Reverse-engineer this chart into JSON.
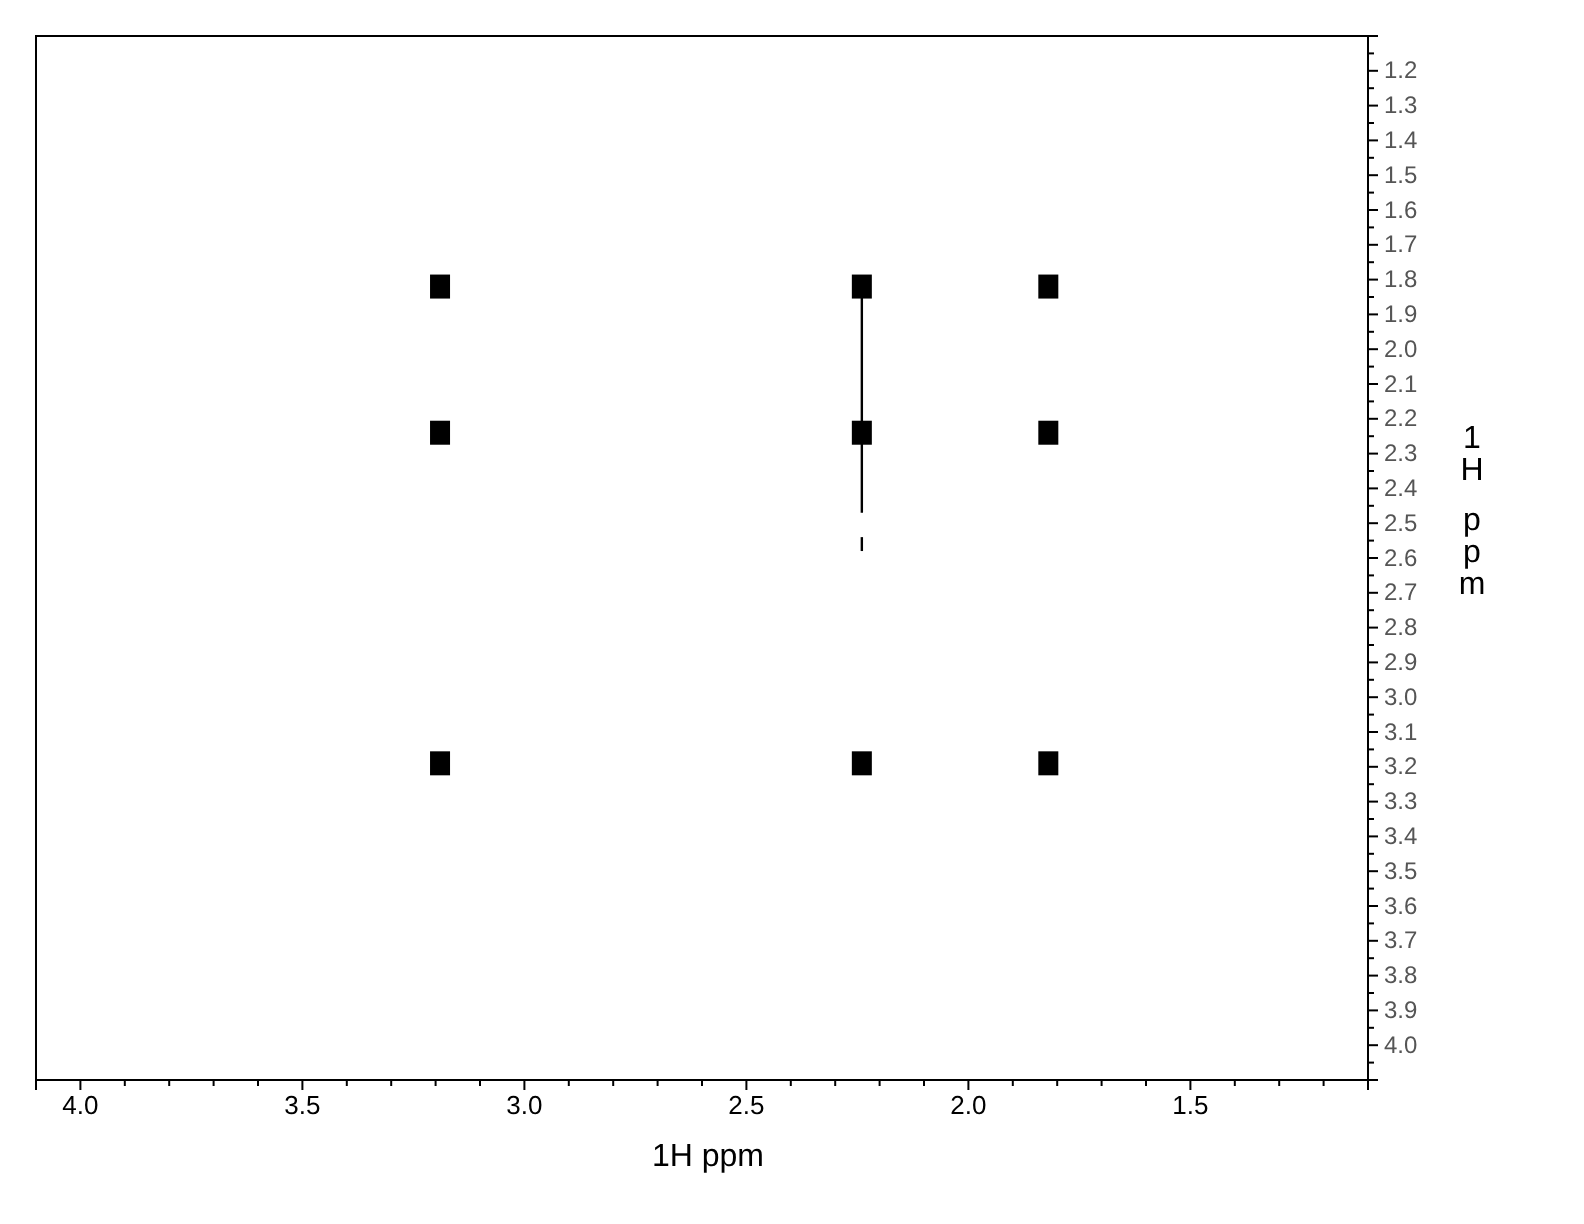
{
  "chart_data": {
    "type": "scatter",
    "xlabel": "1H ppm",
    "ylabel": "1H ppm",
    "xlim": [
      4.1,
      1.1
    ],
    "ylim": [
      4.1,
      1.1
    ],
    "xticks": [
      {
        "value": 4,
        "label": "4.0"
      },
      {
        "value": 3.9,
        "label": null
      },
      {
        "value": 3.8,
        "label": null
      },
      {
        "value": 3.7,
        "label": null
      },
      {
        "value": 3.6,
        "label": null
      },
      3.5,
      {
        "value": 3.4,
        "label": null
      },
      {
        "value": 3.3,
        "label": null
      },
      {
        "value": 3.2,
        "label": null
      },
      {
        "value": 3.1,
        "label": null
      },
      {
        "value": 3,
        "label": "3.0"
      },
      {
        "value": 2.9,
        "label": null
      },
      {
        "value": 2.8,
        "label": null
      },
      {
        "value": 2.7,
        "label": null
      },
      {
        "value": 2.6,
        "label": null
      },
      2.5,
      {
        "value": 2.4,
        "label": null
      },
      {
        "value": 2.3,
        "label": null
      },
      {
        "value": 2.2,
        "label": null
      },
      {
        "value": 2.1,
        "label": null
      },
      {
        "value": 2,
        "label": "2.0"
      },
      {
        "value": 1.9,
        "label": null
      },
      {
        "value": 1.8,
        "label": null
      },
      {
        "value": 1.7,
        "label": null
      },
      {
        "value": 1.6,
        "label": null
      },
      1.5,
      {
        "value": 1.4,
        "label": null
      },
      {
        "value": 1.3,
        "label": null
      },
      {
        "value": 1.2,
        "label": null
      }
    ],
    "yticks": [
      {
        "value": 1.15,
        "label": null
      },
      1.2,
      {
        "value": 1.25,
        "label": null
      },
      1.3,
      {
        "value": 1.35,
        "label": null
      },
      1.4,
      {
        "value": 1.45,
        "label": null
      },
      1.5,
      {
        "value": 1.55,
        "label": null
      },
      1.6,
      {
        "value": 1.65,
        "label": null
      },
      1.7,
      {
        "value": 1.75,
        "label": null
      },
      1.8,
      {
        "value": 1.85,
        "label": null
      },
      1.9,
      {
        "value": 1.95,
        "label": null
      },
      {
        "value": 2,
        "label": "2.0"
      },
      {
        "value": 2.05,
        "label": null
      },
      2.1,
      {
        "value": 2.15,
        "label": null
      },
      2.2,
      {
        "value": 2.25,
        "label": null
      },
      2.3,
      {
        "value": 2.35,
        "label": null
      },
      2.4,
      {
        "value": 2.45,
        "label": null
      },
      2.5,
      {
        "value": 2.55,
        "label": null
      },
      2.6,
      {
        "value": 2.65,
        "label": null
      },
      2.7,
      {
        "value": 2.75,
        "label": null
      },
      2.8,
      {
        "value": 2.85,
        "label": null
      },
      2.9,
      {
        "value": 2.95,
        "label": null
      },
      {
        "value": 3,
        "label": "3.0"
      },
      {
        "value": 3.05,
        "label": null
      },
      3.1,
      {
        "value": 3.15,
        "label": null
      },
      3.2,
      {
        "value": 3.25,
        "label": null
      },
      3.3,
      {
        "value": 3.35,
        "label": null
      },
      3.4,
      {
        "value": 3.45,
        "label": null
      },
      3.5,
      {
        "value": 3.55,
        "label": null
      },
      3.6,
      {
        "value": 3.65,
        "label": null
      },
      3.7,
      {
        "value": 3.75,
        "label": null
      },
      3.8,
      {
        "value": 3.85,
        "label": null
      },
      3.9,
      {
        "value": 3.95,
        "label": null
      },
      {
        "value": 4,
        "label": "4.0"
      },
      {
        "value": 4.05,
        "label": null
      }
    ],
    "grid": false,
    "series": [
      {
        "marker": "square",
        "color": "#000000",
        "x": [
          3.19,
          2.24,
          1.82,
          3.19,
          2.24,
          1.82,
          3.19,
          2.24,
          1.82
        ],
        "values": [
          1.82,
          1.82,
          1.82,
          2.24,
          2.24,
          2.24,
          3.19,
          3.19,
          3.19
        ]
      },
      {
        "type": "line",
        "color": "#000000",
        "x": [
          2.24,
          2.24
        ],
        "values": [
          1.84,
          2.47
        ]
      },
      {
        "type": "line",
        "color": "#000000",
        "x": [
          2.24,
          2.24
        ],
        "values": [
          2.54,
          2.58
        ]
      }
    ]
  }
}
